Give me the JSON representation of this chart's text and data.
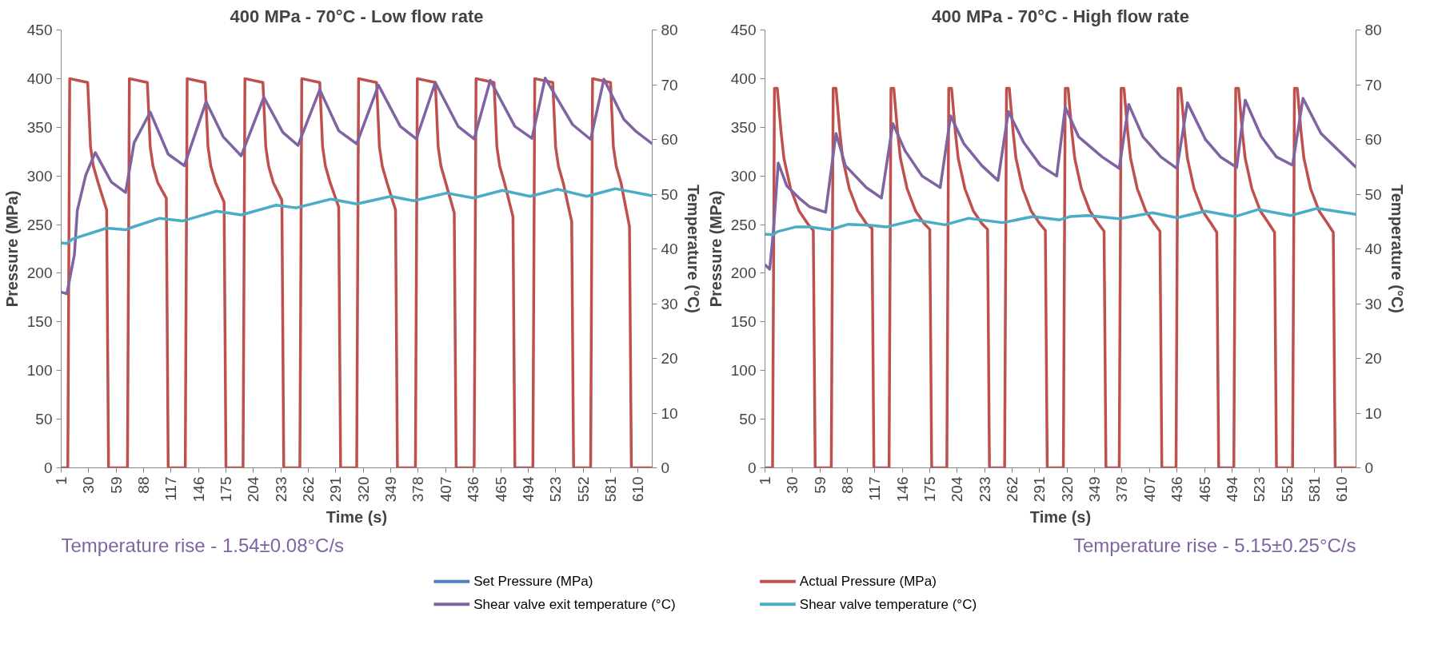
{
  "chart_data": [
    {
      "type": "line",
      "title": "400 MPa - 70°C - Low flow rate",
      "xlabel": "Time (s)",
      "ylabel": "Pressure (MPa)",
      "y2label": "Temperature (°C)",
      "xlim": [
        1,
        625
      ],
      "xticks": [
        1,
        30,
        59,
        88,
        117,
        146,
        175,
        204,
        233,
        262,
        291,
        320,
        349,
        378,
        407,
        436,
        465,
        494,
        523,
        552,
        581,
        610
      ],
      "ylim": [
        0,
        450
      ],
      "yticks": [
        0,
        50,
        100,
        150,
        200,
        250,
        300,
        350,
        400,
        450
      ],
      "y2lim": [
        0,
        80
      ],
      "y2ticks": [
        0,
        10,
        20,
        30,
        40,
        50,
        60,
        70,
        80
      ],
      "grid": false,
      "legend": "bottom",
      "annotations": [
        "Temperature rise - 1.54±0.08°C/s"
      ],
      "series": [
        {
          "name": "Set Pressure (MPa)",
          "color": "#4f81bd"
        },
        {
          "name": "Actual Pressure (MPa)",
          "color": "#c0504d",
          "x": [
            1,
            8,
            10,
            29,
            32,
            35,
            40,
            49,
            51,
            71,
            73,
            92,
            95,
            98,
            103,
            112,
            114,
            132,
            134,
            153,
            156,
            159,
            164,
            173,
            175,
            193,
            195,
            214,
            217,
            220,
            225,
            234,
            236,
            253,
            255,
            274,
            277,
            280,
            285,
            294,
            296,
            313,
            315,
            334,
            337,
            340,
            345,
            354,
            356,
            375,
            377,
            396,
            399,
            402,
            407,
            416,
            418,
            437,
            439,
            458,
            461,
            464,
            469,
            478,
            480,
            499,
            501,
            520,
            523,
            526,
            531,
            540,
            542,
            560,
            562,
            581,
            584,
            587,
            592,
            601,
            603,
            625
          ],
          "values": [
            0,
            0,
            400,
            396,
            330,
            310,
            293,
            265,
            0,
            0,
            400,
            396,
            330,
            310,
            293,
            277,
            0,
            0,
            400,
            396,
            330,
            310,
            293,
            273,
            0,
            0,
            400,
            396,
            330,
            310,
            293,
            275,
            0,
            0,
            400,
            396,
            330,
            310,
            293,
            268,
            0,
            0,
            400,
            396,
            330,
            310,
            293,
            265,
            0,
            0,
            400,
            396,
            330,
            310,
            293,
            262,
            0,
            0,
            400,
            396,
            330,
            310,
            293,
            258,
            0,
            0,
            400,
            396,
            330,
            310,
            293,
            253,
            0,
            0,
            400,
            396,
            330,
            310,
            293,
            248,
            0,
            0
          ]
        },
        {
          "name": "Shear valve exit temperature (°C)",
          "color": "#8064a2",
          "axis": "y2",
          "x": [
            1,
            7,
            15,
            18,
            27,
            37,
            54,
            69,
            78,
            95,
            114,
            131,
            154,
            172,
            191,
            215,
            235,
            251,
            274,
            294,
            313,
            336,
            359,
            376,
            396,
            420,
            437,
            454,
            480,
            498,
            512,
            541,
            560,
            574,
            595,
            607,
            625
          ],
          "values": [
            32.1,
            31.8,
            39,
            47,
            53.5,
            57.6,
            52.2,
            50.3,
            59.4,
            65,
            57.3,
            55.2,
            66.9,
            60.5,
            57,
            67.7,
            61.3,
            58.9,
            69.1,
            61.6,
            59.2,
            69.9,
            62.4,
            60.1,
            70.4,
            62.4,
            60.1,
            70.8,
            62.4,
            60.2,
            71.2,
            62.7,
            60,
            71,
            63.7,
            61.6,
            59.2
          ]
        },
        {
          "name": "Shear valve temperature (°C)",
          "color": "#4bacc6",
          "axis": "y2",
          "x": [
            1,
            7,
            13,
            49,
            69,
            75,
            105,
            129,
            165,
            191,
            228,
            249,
            286,
            313,
            349,
            373,
            408,
            436,
            467,
            496,
            525,
            556,
            586,
            625
          ],
          "values": [
            41.1,
            41,
            41.8,
            43.8,
            43.5,
            43.9,
            45.6,
            45.1,
            46.9,
            46.2,
            48,
            47.5,
            49.1,
            48.2,
            49.6,
            48.8,
            50.2,
            49.3,
            50.7,
            49.6,
            50.9,
            49.6,
            51,
            49.7
          ]
        }
      ]
    },
    {
      "type": "line",
      "title": "400 MPa - 70°C - High flow rate",
      "xlabel": "Time (s)",
      "ylabel": "Pressure (MPa)",
      "y2label": "Temperature (°C)",
      "xlim": [
        1,
        625
      ],
      "xticks": [
        1,
        30,
        59,
        88,
        117,
        146,
        175,
        204,
        233,
        262,
        291,
        320,
        349,
        378,
        407,
        436,
        465,
        494,
        523,
        552,
        581,
        610
      ],
      "ylim": [
        0,
        450
      ],
      "yticks": [
        0,
        50,
        100,
        150,
        200,
        250,
        300,
        350,
        400,
        450
      ],
      "y2lim": [
        0,
        80
      ],
      "y2ticks": [
        0,
        10,
        20,
        30,
        40,
        50,
        60,
        70,
        80
      ],
      "grid": false,
      "annotations": [
        "Temperature rise - 5.15±0.25°C/s"
      ],
      "series": [
        {
          "color": "#4f81bd"
        },
        {
          "color": "#c0504d",
          "x": [
            1,
            9,
            11,
            14,
            18,
            21,
            28,
            37,
            46,
            52,
            54,
            71,
            73,
            76,
            80,
            83,
            90,
            99,
            108,
            114,
            116,
            132,
            134,
            137,
            141,
            144,
            151,
            160,
            169,
            175,
            177,
            193,
            195,
            198,
            202,
            205,
            212,
            221,
            230,
            236,
            238,
            254,
            256,
            259,
            263,
            266,
            273,
            282,
            291,
            297,
            299,
            316,
            318,
            321,
            325,
            328,
            335,
            344,
            353,
            359,
            361,
            375,
            377,
            380,
            384,
            387,
            394,
            403,
            412,
            418,
            420,
            435,
            437,
            440,
            444,
            447,
            454,
            463,
            472,
            478,
            480,
            496,
            498,
            501,
            505,
            508,
            515,
            524,
            533,
            539,
            541,
            558,
            560,
            563,
            567,
            570,
            577,
            586,
            595,
            601,
            603,
            625
          ],
          "values": [
            0,
            0,
            390,
            390,
            345,
            318,
            287,
            264,
            251,
            244,
            0,
            0,
            390,
            390,
            345,
            318,
            287,
            264,
            251,
            246,
            0,
            0,
            390,
            390,
            345,
            318,
            287,
            264,
            251,
            245,
            0,
            0,
            390,
            390,
            345,
            318,
            287,
            264,
            251,
            245,
            0,
            0,
            390,
            390,
            345,
            318,
            287,
            264,
            251,
            244,
            0,
            0,
            390,
            390,
            345,
            318,
            287,
            264,
            251,
            243,
            0,
            0,
            390,
            390,
            345,
            318,
            287,
            264,
            251,
            243,
            0,
            0,
            390,
            390,
            345,
            318,
            287,
            264,
            251,
            242,
            0,
            0,
            390,
            390,
            345,
            318,
            287,
            264,
            251,
            242,
            0,
            0,
            390,
            390,
            345,
            318,
            287,
            264,
            251,
            242,
            0,
            0
          ]
        },
        {
          "color": "#8064a2",
          "axis": "y2",
          "x": [
            1,
            6,
            10,
            15,
            24,
            37,
            48,
            65,
            76,
            86,
            108,
            124,
            136,
            149,
            167,
            186,
            197,
            211,
            230,
            247,
            258,
            274,
            292,
            309,
            318,
            332,
            357,
            375,
            385,
            400,
            419,
            436,
            447,
            466,
            482,
            499,
            508,
            525,
            541,
            558,
            569,
            588,
            625
          ],
          "values": [
            37.1,
            36.3,
            43.5,
            55.7,
            51.5,
            49.3,
            47.7,
            46.7,
            61.1,
            55.2,
            51.2,
            49.3,
            62.9,
            57.9,
            53.3,
            51.2,
            64.3,
            59.2,
            55.2,
            52.5,
            65.1,
            59.5,
            55.2,
            53.3,
            65.9,
            60.5,
            56.8,
            54.7,
            66.4,
            60.5,
            56.8,
            54.7,
            66.7,
            60,
            56.8,
            54.9,
            67.2,
            60.5,
            56.8,
            55.3,
            67.5,
            61.1,
            54.9
          ]
        },
        {
          "color": "#4bacc6",
          "axis": "y2",
          "x": [
            1,
            9,
            15,
            33,
            49,
            70,
            89,
            113,
            129,
            160,
            191,
            216,
            252,
            284,
            312,
            323,
            342,
            375,
            410,
            436,
            466,
            497,
            522,
            556,
            584,
            625
          ],
          "values": [
            42.7,
            42.6,
            43.2,
            44,
            44,
            43.5,
            44.5,
            44.3,
            44,
            45.3,
            44.4,
            45.6,
            44.8,
            45.9,
            45.3,
            45.9,
            46.1,
            45.5,
            46.6,
            45.7,
            46.9,
            45.9,
            47.2,
            46.1,
            47.4,
            46.3
          ]
        }
      ]
    }
  ]
}
